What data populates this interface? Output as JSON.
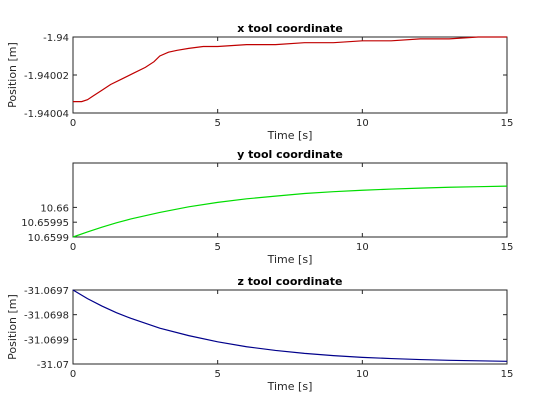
{
  "chart_data": [
    {
      "type": "line",
      "title": "x tool coordinate",
      "xlabel": "Time [s]",
      "ylabel": "Position [m]",
      "xlim": [
        0,
        15
      ],
      "ylim": [
        -1.94004,
        -1.94
      ],
      "xticks": [
        0,
        5,
        10,
        15
      ],
      "xtick_labels": [
        "0",
        "5",
        "10",
        "15"
      ],
      "yticks": [
        -1.94004,
        -1.94002,
        -1.94
      ],
      "ytick_labels": [
        "-1.94004",
        "-1.94002",
        "-1.94"
      ],
      "grid": false,
      "series": [
        {
          "color": "#c00000",
          "x": [
            0,
            0.3,
            0.5,
            0.7,
            1.0,
            1.3,
            1.7,
            2.1,
            2.5,
            2.8,
            3.0,
            3.3,
            3.6,
            4.0,
            4.5,
            5,
            6,
            7,
            8,
            9,
            10,
            11,
            12,
            13,
            14,
            15
          ],
          "y": [
            -1.940034,
            -1.940034,
            -1.940033,
            -1.940031,
            -1.940028,
            -1.940025,
            -1.940022,
            -1.940019,
            -1.940016,
            -1.940013,
            -1.94001,
            -1.940008,
            -1.940007,
            -1.940006,
            -1.940005,
            -1.940005,
            -1.940004,
            -1.940004,
            -1.940003,
            -1.940003,
            -1.940002,
            -1.940002,
            -1.940001,
            -1.940001,
            -1.94,
            -1.94
          ]
        }
      ]
    },
    {
      "type": "line",
      "title": "y tool coordinate",
      "xlabel": "Time [s]",
      "ylabel": "",
      "xlim": [
        0,
        15
      ],
      "ylim": [
        10.6599,
        10.66015
      ],
      "xticks": [
        0,
        5,
        10,
        15
      ],
      "xtick_labels": [
        "0",
        "5",
        "10",
        "15"
      ],
      "yticks": [
        10.6599,
        10.65995,
        10.66
      ],
      "ytick_labels": [
        "10.6599",
        "10.65995",
        "10.66"
      ],
      "grid": false,
      "series": [
        {
          "color": "#00dd00",
          "x": [
            0,
            0.5,
            1,
            1.5,
            2,
            3,
            4,
            5,
            6,
            7,
            8,
            9,
            10,
            11,
            12,
            13,
            14,
            15
          ],
          "y": [
            10.6599,
            10.659917,
            10.659933,
            10.659948,
            10.659961,
            10.659983,
            10.660002,
            10.660017,
            10.660029,
            10.660038,
            10.660047,
            10.660053,
            10.660058,
            10.660062,
            10.660065,
            10.660068,
            10.66007,
            10.660072
          ]
        }
      ]
    },
    {
      "type": "line",
      "title": "z tool coordinate",
      "xlabel": "Time [s]",
      "ylabel": "Position [m]",
      "xlim": [
        0,
        15
      ],
      "ylim": [
        -31.07,
        -31.0697
      ],
      "xticks": [
        0,
        5,
        10,
        15
      ],
      "xtick_labels": [
        "0",
        "5",
        "10",
        "15"
      ],
      "yticks": [
        -31.07,
        -31.0699,
        -31.0698,
        -31.0697
      ],
      "ytick_labels": [
        "-31.07",
        "-31.0699",
        "-31.0698",
        "-31.0697"
      ],
      "grid": false,
      "series": [
        {
          "color": "#00008b",
          "x": [
            0,
            0.5,
            1,
            1.5,
            2,
            3,
            4,
            5,
            6,
            7,
            8,
            9,
            10,
            11,
            12,
            13,
            14,
            15
          ],
          "y": [
            -31.0697,
            -31.069735,
            -31.069765,
            -31.069792,
            -31.069815,
            -31.069855,
            -31.069885,
            -31.06991,
            -31.06993,
            -31.069945,
            -31.069957,
            -31.069966,
            -31.069973,
            -31.069978,
            -31.069982,
            -31.069985,
            -31.069987,
            -31.069989
          ]
        }
      ]
    }
  ]
}
